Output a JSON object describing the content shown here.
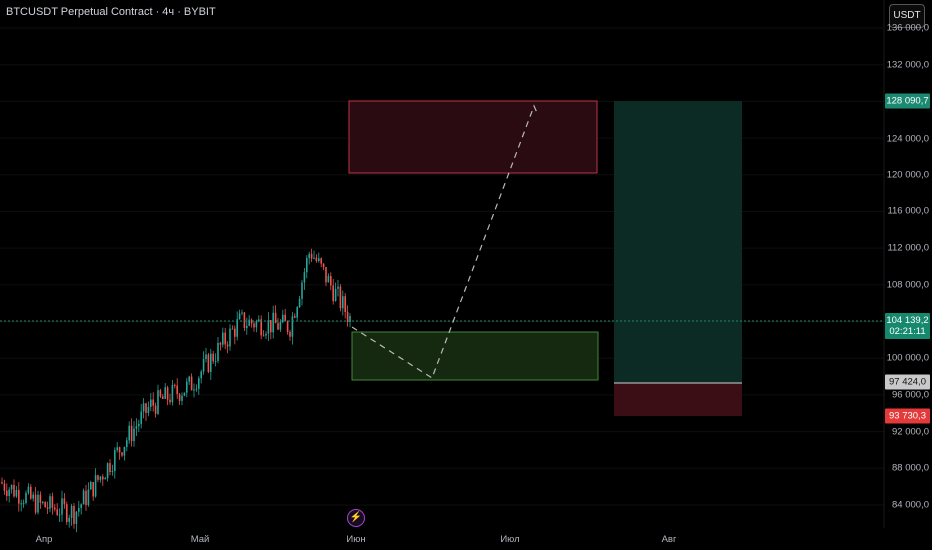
{
  "header": {
    "title": "BTCUSDT Perpetual Contract · 4ч · BYBIT"
  },
  "toolbar": {
    "currency_label": "USDT"
  },
  "price_axis": {
    "ticks": [
      "136 000,0",
      "132 000,0",
      "124 000,0",
      "120 000,0",
      "116 000,0",
      "112 000,0",
      "108 000,0",
      "100 000,0",
      "96 000,0",
      "92 000,0",
      "88 000,0",
      "84 000,0"
    ],
    "tags": {
      "target": "128 090,7",
      "last_price": "104 139,2",
      "countdown": "02:21:11",
      "entry": "97 424,0",
      "stop": "93 730,3"
    }
  },
  "time_axis": {
    "labels": [
      "Апр",
      "Май",
      "Июн",
      "Июл",
      "Авг"
    ]
  },
  "colors": {
    "background": "#000000",
    "candle_up": "#26a69a",
    "candle_down": "#ef5350",
    "target_zone": "#3a0b14",
    "entry_zone": "#13280f",
    "profit_area": "#0b2b24",
    "loss_area": "#3a0e14"
  },
  "event_icon": "lightning-icon",
  "chart_data": {
    "type": "candlestick",
    "symbol": "BTCUSDT",
    "timeframe": "4ч",
    "exchange": "BYBIT",
    "y_range": [
      82000,
      137000
    ],
    "path": [
      {
        "x": "Апр",
        "y": 86500
      },
      {
        "x": "Апр",
        "y": 84000
      },
      {
        "x": "Апр",
        "y": 83200
      },
      {
        "x": "Май",
        "y": 94800
      },
      {
        "x": "Май",
        "y": 97000
      },
      {
        "x": "Май",
        "y": 104000
      },
      {
        "x": "Май",
        "y": 103500
      },
      {
        "x": "Май",
        "y": 111800
      },
      {
        "x": "Июн",
        "y": 104000
      }
    ],
    "last_price": 104139.2,
    "trade_setup": {
      "target_zone": [
        120000,
        128090.7
      ],
      "entry_zone": [
        97424.0,
        103000
      ],
      "stop_loss": 93730.3,
      "entry": 97424.0,
      "target": 128090.7
    }
  }
}
